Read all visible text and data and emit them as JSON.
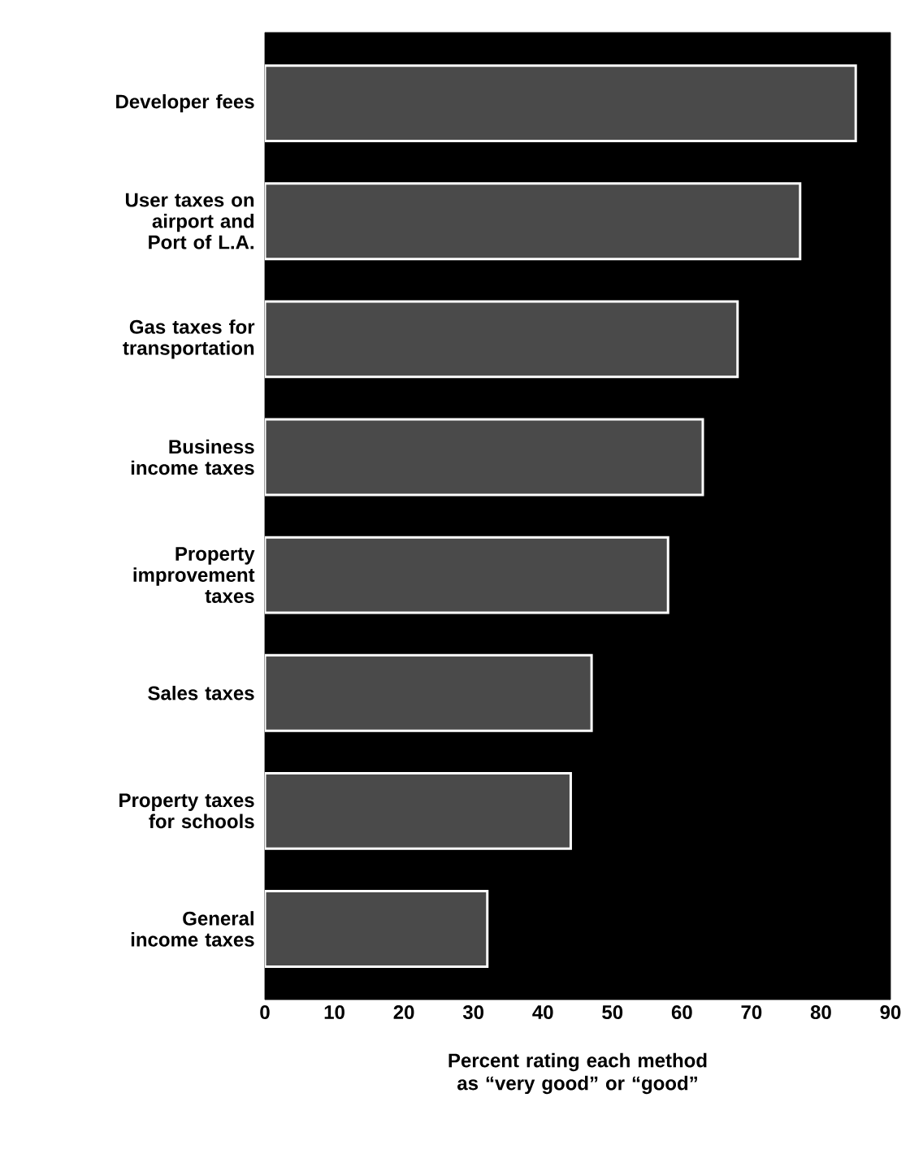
{
  "chart_data": {
    "type": "bar",
    "orientation": "horizontal",
    "xlabel": "Percent rating each method as “very good” or “good”",
    "categories": [
      "Developer fees",
      "User taxes on airport and Port of L.A.",
      "Gas taxes for transportation",
      "Business income taxes",
      "Property improvement taxes",
      "Sales taxes",
      "Property taxes for schools",
      "General income taxes"
    ],
    "values": [
      85,
      77,
      68,
      63,
      58,
      47,
      44,
      32
    ],
    "color": "#4a4a4a",
    "xlim": [
      0,
      90
    ],
    "xticks": [
      0,
      10,
      20,
      30,
      40,
      50,
      60,
      70,
      80,
      90
    ],
    "grid": false
  }
}
